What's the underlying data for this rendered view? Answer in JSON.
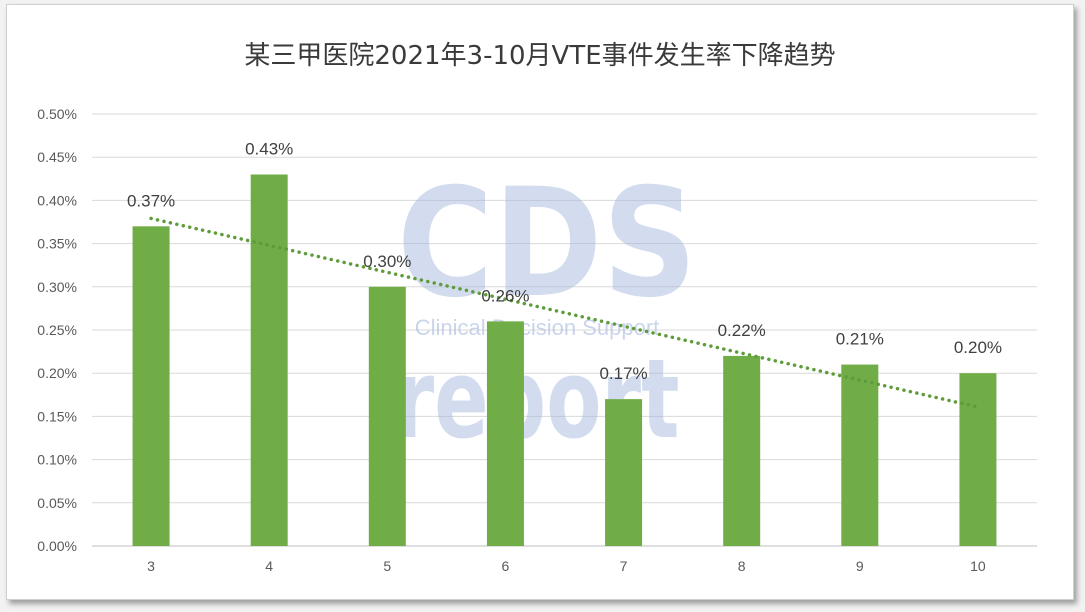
{
  "chart_data": {
    "type": "bar",
    "title": "某三甲医院2021年3-10月VTE事件发生率下降趋势",
    "categories": [
      "3",
      "4",
      "5",
      "6",
      "7",
      "8",
      "9",
      "10"
    ],
    "values": [
      0.37,
      0.43,
      0.3,
      0.26,
      0.17,
      0.22,
      0.21,
      0.2
    ],
    "data_labels": [
      "0.37%",
      "0.43%",
      "0.30%",
      "0.26%",
      "0.17%",
      "0.22%",
      "0.21%",
      "0.20%"
    ],
    "unit": "%",
    "ylim": [
      0,
      0.5
    ],
    "yticks": [
      0,
      0.05,
      0.1,
      0.15,
      0.2,
      0.25,
      0.3,
      0.35,
      0.4,
      0.45,
      0.5
    ],
    "ytick_labels": [
      "0.00%",
      "0.05%",
      "0.10%",
      "0.15%",
      "0.20%",
      "0.25%",
      "0.30%",
      "0.35%",
      "0.40%",
      "0.45%",
      "0.50%"
    ],
    "xlabel": "",
    "ylabel": "",
    "grid": true,
    "legend": "none",
    "trendline": {
      "type": "linear",
      "style": "dotted",
      "color": "#5e9c3a"
    },
    "bar_color": "#70ad47"
  },
  "watermark": {
    "logo_text": "CDS",
    "tagline": "Clinical Decision Support",
    "word": "report"
  }
}
